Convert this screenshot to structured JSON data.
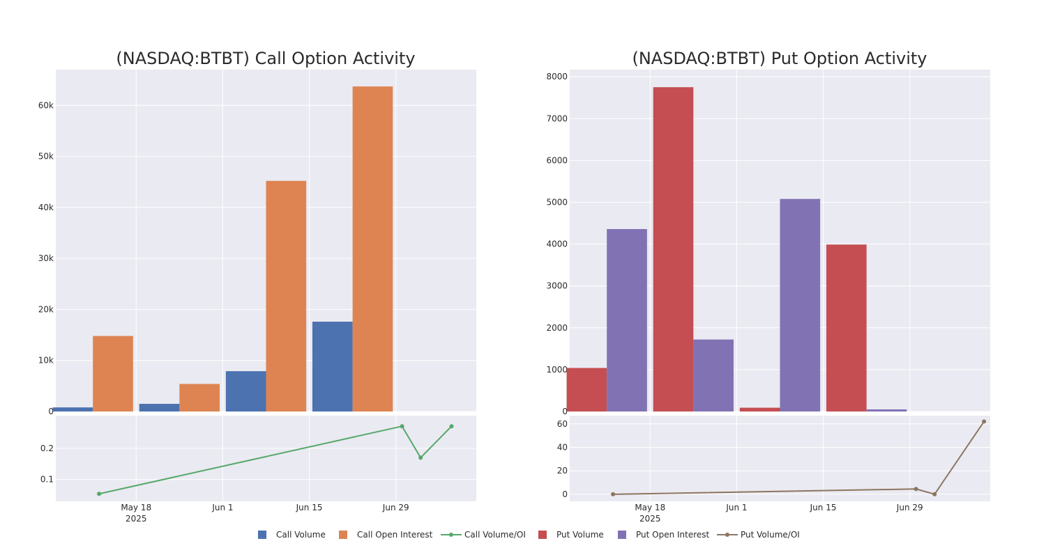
{
  "colors": {
    "call_volume": "#4c72b0",
    "call_open_interest": "#dd8452",
    "call_ratio": "#55a868",
    "put_volume": "#c44e52",
    "put_open_interest": "#8172b3",
    "put_ratio": "#8c7560",
    "plot_bg": "#eaeaf2",
    "grid": "#ffffff"
  },
  "legend": [
    {
      "label": "Call Volume",
      "key": "call_volume",
      "kind": "square"
    },
    {
      "label": "Call Open Interest",
      "key": "call_open_interest",
      "kind": "square"
    },
    {
      "label": "Call Volume/OI",
      "key": "call_ratio",
      "kind": "line"
    },
    {
      "label": "Put Volume",
      "key": "put_volume",
      "kind": "square"
    },
    {
      "label": "Put Open Interest",
      "key": "put_open_interest",
      "kind": "square"
    },
    {
      "label": "Put Volume/OI",
      "key": "put_ratio",
      "kind": "line"
    }
  ],
  "chart_data": [
    {
      "type": "bar",
      "panel": "call",
      "title": "(NASDAQ:BTBT) Call Option Activity",
      "categories": [
        "2025-05-11",
        "2025-05-25",
        "2025-06-08",
        "2025-06-22"
      ],
      "series": [
        {
          "name": "Call Volume",
          "color_key": "call_volume",
          "values": [
            800,
            1500,
            7900,
            17600
          ]
        },
        {
          "name": "Call Open Interest",
          "color_key": "call_open_interest",
          "values": [
            14800,
            5400,
            45200,
            63700
          ]
        }
      ],
      "ylim": [
        0,
        67000
      ],
      "yticks": [
        0,
        10000,
        20000,
        30000,
        40000,
        50000,
        60000
      ],
      "ytick_labels": [
        "0",
        "10k",
        "20k",
        "30k",
        "40k",
        "50k",
        "60k"
      ],
      "xticks": [
        {
          "date": "2025-05-18",
          "label": "May 18",
          "sub": "2025"
        },
        {
          "date": "2025-06-01",
          "label": "Jun 1",
          "sub": ""
        },
        {
          "date": "2025-06-15",
          "label": "Jun 15",
          "sub": ""
        },
        {
          "date": "2025-06-29",
          "label": "Jun 29",
          "sub": ""
        }
      ],
      "xlim": [
        "2025-05-05",
        "2025-07-12"
      ],
      "grid": true
    },
    {
      "type": "line",
      "panel": "call",
      "series": [
        {
          "name": "Call Volume/OI",
          "color_key": "call_ratio",
          "x": [
            "2025-05-12",
            "2025-06-30",
            "2025-07-03",
            "2025-07-08"
          ],
          "y": [
            0.054,
            0.271,
            0.17,
            0.271
          ]
        }
      ],
      "ylim": [
        0.03,
        0.305
      ],
      "yticks": [
        0.1,
        0.2
      ],
      "ytick_labels": [
        "0.1",
        "0.2"
      ],
      "xlim": [
        "2025-05-05",
        "2025-07-12"
      ],
      "grid": true
    },
    {
      "type": "bar",
      "panel": "put",
      "title": "(NASDAQ:BTBT) Put Option Activity",
      "categories": [
        "2025-05-11",
        "2025-05-25",
        "2025-06-08",
        "2025-06-22"
      ],
      "series": [
        {
          "name": "Put Volume",
          "color_key": "put_volume",
          "values": [
            1040,
            7750,
            90,
            3990
          ]
        },
        {
          "name": "Put Open Interest",
          "color_key": "put_open_interest",
          "values": [
            4360,
            1720,
            5080,
            50
          ]
        }
      ],
      "ylim": [
        0,
        8170
      ],
      "yticks": [
        0,
        1000,
        2000,
        3000,
        4000,
        5000,
        6000,
        7000,
        8000
      ],
      "ytick_labels": [
        "0",
        "1000",
        "2000",
        "3000",
        "4000",
        "5000",
        "6000",
        "7000",
        "8000"
      ],
      "xticks": [
        {
          "date": "2025-05-18",
          "label": "May 18",
          "sub": "2025"
        },
        {
          "date": "2025-06-01",
          "label": "Jun 1",
          "sub": ""
        },
        {
          "date": "2025-06-15",
          "label": "Jun 15",
          "sub": ""
        },
        {
          "date": "2025-06-29",
          "label": "Jun 29",
          "sub": ""
        }
      ],
      "xlim": [
        "2025-05-05",
        "2025-07-12"
      ],
      "grid": true
    },
    {
      "type": "line",
      "panel": "put",
      "series": [
        {
          "name": "Put Volume/OI",
          "color_key": "put_ratio",
          "x": [
            "2025-05-12",
            "2025-06-30",
            "2025-07-03",
            "2025-07-11"
          ],
          "y": [
            0,
            4.5,
            0,
            62
          ]
        }
      ],
      "ylim": [
        -6,
        67
      ],
      "yticks": [
        0,
        20,
        40,
        60
      ],
      "ytick_labels": [
        "0",
        "20",
        "40",
        "60"
      ],
      "xlim": [
        "2025-05-05",
        "2025-07-12"
      ],
      "grid": true
    }
  ]
}
